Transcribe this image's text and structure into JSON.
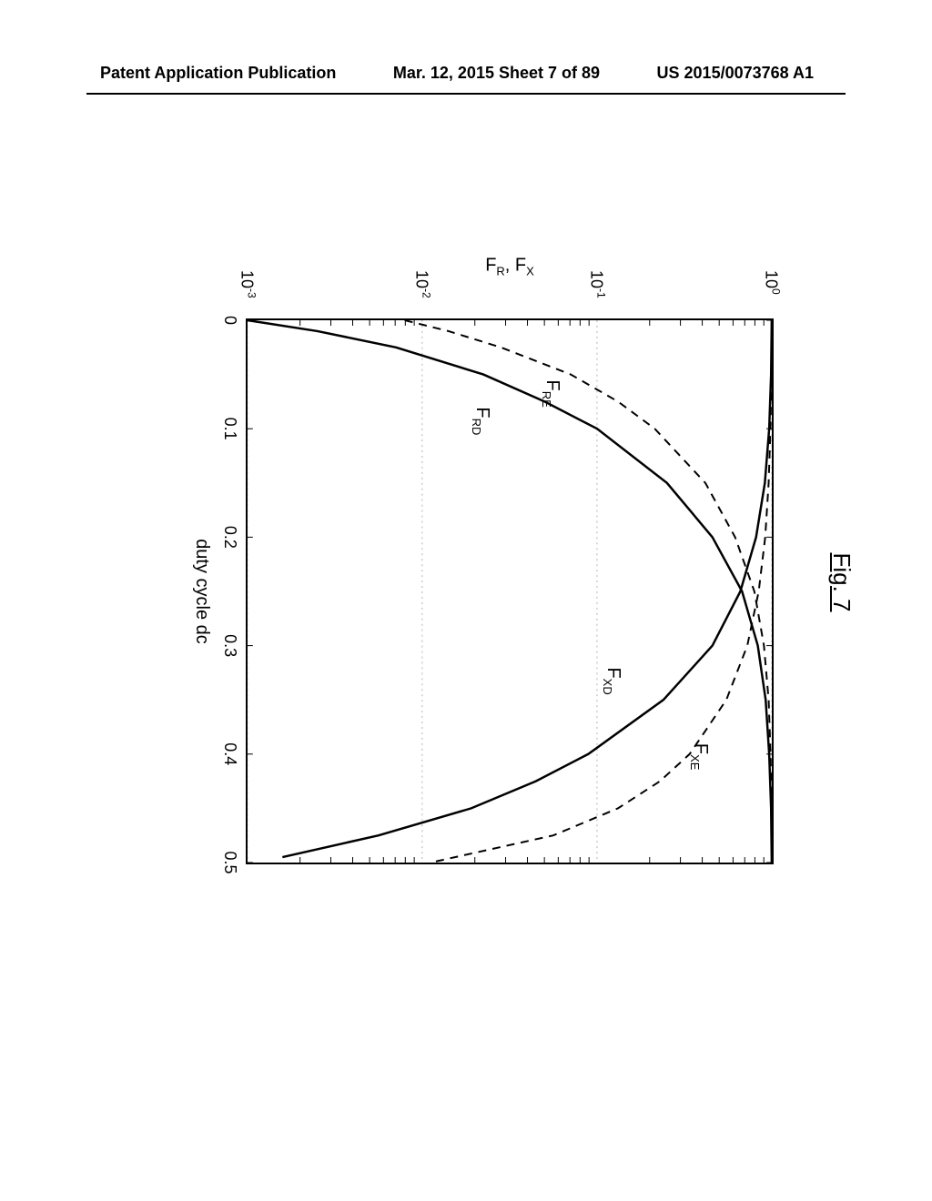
{
  "header": {
    "left": "Patent Application Publication",
    "center": "Mar. 12, 2015 Sheet 7 of 89",
    "right": "US 2015/0073768 A1"
  },
  "figure": {
    "title": "Fig. 7",
    "type": "line",
    "xlabel": "duty cycle dc",
    "ylabel_html": "F<sub>R</sub>, F<sub>X</sub>",
    "xlim": [
      0,
      0.5
    ],
    "xticks": [
      0,
      0.1,
      0.2,
      0.3,
      0.4,
      0.5
    ],
    "xtick_labels": [
      "0",
      "0.1",
      "0.2",
      "0.3",
      "0.4",
      "0.5"
    ],
    "ylim_exp": [
      -3,
      0
    ],
    "ytick_exps": [
      -3,
      -2,
      -1,
      0
    ],
    "ytick_labels_html": [
      "10<sup>-3</sup>",
      "10<sup>-2</sup>",
      "10<sup>-1</sup>",
      "10<sup>0</sup>"
    ],
    "colors": {
      "background": "#ffffff",
      "axis": "#000000",
      "solid_line": "#000000",
      "dashed_line": "#000000",
      "grid": "#000000"
    },
    "line_widths": {
      "solid": 2.5,
      "dashed": 2.0
    },
    "dash_pattern": "9 7",
    "series": [
      {
        "name": "F_RD",
        "label_html": "F<sub>RD</sub>",
        "style": "solid",
        "label_pos": {
          "dc": 0.08,
          "y_exp": -1.6
        },
        "points": [
          {
            "dc": 0.0,
            "y_exp": -3.0
          },
          {
            "dc": 0.01,
            "y_exp": -2.6
          },
          {
            "dc": 0.025,
            "y_exp": -2.15
          },
          {
            "dc": 0.05,
            "y_exp": -1.65
          },
          {
            "dc": 0.075,
            "y_exp": -1.3
          },
          {
            "dc": 0.1,
            "y_exp": -1.0
          },
          {
            "dc": 0.15,
            "y_exp": -0.6
          },
          {
            "dc": 0.2,
            "y_exp": -0.34
          },
          {
            "dc": 0.25,
            "y_exp": -0.17
          },
          {
            "dc": 0.3,
            "y_exp": -0.08
          },
          {
            "dc": 0.35,
            "y_exp": -0.035
          },
          {
            "dc": 0.4,
            "y_exp": -0.015
          },
          {
            "dc": 0.45,
            "y_exp": -0.004
          },
          {
            "dc": 0.5,
            "y_exp": -0.0005
          }
        ]
      },
      {
        "name": "F_XD",
        "label_html": "F<sub>XD</sub>",
        "style": "solid",
        "label_pos": {
          "dc": 0.32,
          "y_exp": -0.85
        },
        "points": [
          {
            "dc": 0.0,
            "y_exp": -0.0005
          },
          {
            "dc": 0.05,
            "y_exp": -0.004
          },
          {
            "dc": 0.1,
            "y_exp": -0.015
          },
          {
            "dc": 0.15,
            "y_exp": -0.04
          },
          {
            "dc": 0.2,
            "y_exp": -0.09
          },
          {
            "dc": 0.25,
            "y_exp": -0.18
          },
          {
            "dc": 0.3,
            "y_exp": -0.34
          },
          {
            "dc": 0.35,
            "y_exp": -0.62
          },
          {
            "dc": 0.4,
            "y_exp": -1.05
          },
          {
            "dc": 0.425,
            "y_exp": -1.35
          },
          {
            "dc": 0.45,
            "y_exp": -1.72
          },
          {
            "dc": 0.475,
            "y_exp": -2.25
          },
          {
            "dc": 0.495,
            "y_exp": -2.8
          }
        ]
      },
      {
        "name": "F_RE",
        "label_html": "F<sub>RE</sub>",
        "style": "dashed",
        "label_pos": {
          "dc": 0.055,
          "y_exp": -1.2
        },
        "points": [
          {
            "dc": 0.0,
            "y_exp": -2.1
          },
          {
            "dc": 0.01,
            "y_exp": -1.85
          },
          {
            "dc": 0.025,
            "y_exp": -1.55
          },
          {
            "dc": 0.05,
            "y_exp": -1.15
          },
          {
            "dc": 0.075,
            "y_exp": -0.88
          },
          {
            "dc": 0.1,
            "y_exp": -0.67
          },
          {
            "dc": 0.15,
            "y_exp": -0.38
          },
          {
            "dc": 0.2,
            "y_exp": -0.21
          },
          {
            "dc": 0.25,
            "y_exp": -0.1
          },
          {
            "dc": 0.3,
            "y_exp": -0.045
          },
          {
            "dc": 0.35,
            "y_exp": -0.018
          },
          {
            "dc": 0.4,
            "y_exp": -0.007
          },
          {
            "dc": 0.45,
            "y_exp": -0.002
          },
          {
            "dc": 0.5,
            "y_exp": -0.0003
          }
        ]
      },
      {
        "name": "F_XE",
        "label_html": "F<sub>XE</sub>",
        "style": "dashed",
        "label_pos": {
          "dc": 0.39,
          "y_exp": -0.35
        },
        "points": [
          {
            "dc": 0.0,
            "y_exp": -0.0003
          },
          {
            "dc": 0.05,
            "y_exp": -0.0025
          },
          {
            "dc": 0.1,
            "y_exp": -0.008
          },
          {
            "dc": 0.15,
            "y_exp": -0.018
          },
          {
            "dc": 0.2,
            "y_exp": -0.038
          },
          {
            "dc": 0.25,
            "y_exp": -0.075
          },
          {
            "dc": 0.3,
            "y_exp": -0.14
          },
          {
            "dc": 0.35,
            "y_exp": -0.26
          },
          {
            "dc": 0.4,
            "y_exp": -0.47
          },
          {
            "dc": 0.425,
            "y_exp": -0.64
          },
          {
            "dc": 0.45,
            "y_exp": -0.88
          },
          {
            "dc": 0.475,
            "y_exp": -1.25
          },
          {
            "dc": 0.5,
            "y_exp": -1.95
          }
        ]
      }
    ]
  }
}
